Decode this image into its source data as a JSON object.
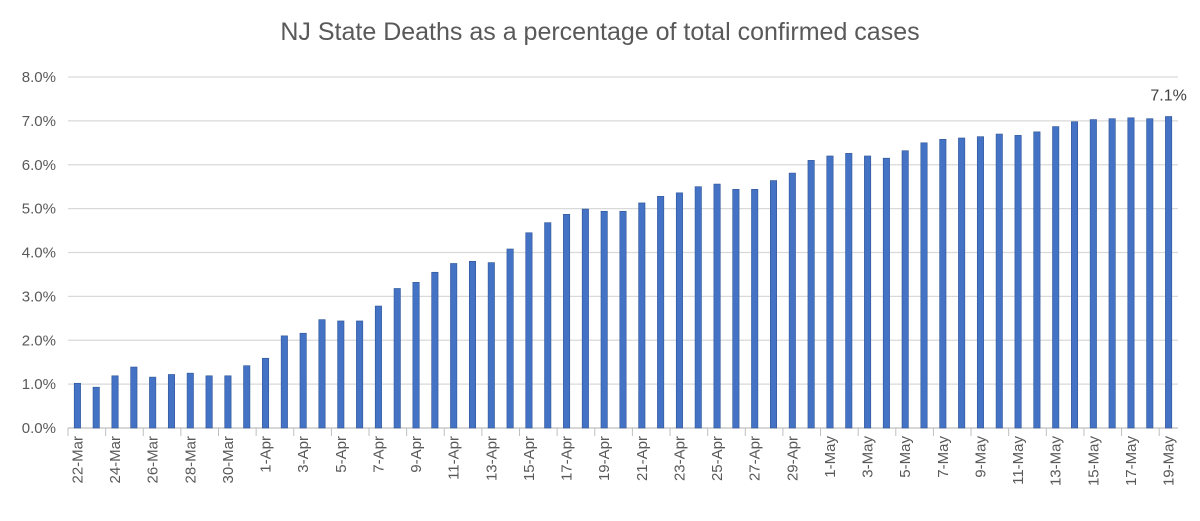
{
  "chart_data": {
    "type": "bar",
    "title": "NJ State Deaths as a percentage of total confirmed cases",
    "xlabel": "",
    "ylabel": "",
    "ylim": [
      0,
      8
    ],
    "yticks": [
      "0.0%",
      "1.0%",
      "2.0%",
      "3.0%",
      "4.0%",
      "5.0%",
      "6.0%",
      "7.0%",
      "8.0%"
    ],
    "grid": true,
    "bar_color": "#4472C4",
    "categories": [
      "22-Mar",
      "23-Mar",
      "24-Mar",
      "25-Mar",
      "26-Mar",
      "27-Mar",
      "28-Mar",
      "29-Mar",
      "30-Mar",
      "31-Mar",
      "1-Apr",
      "2-Apr",
      "3-Apr",
      "4-Apr",
      "5-Apr",
      "6-Apr",
      "7-Apr",
      "8-Apr",
      "9-Apr",
      "10-Apr",
      "11-Apr",
      "12-Apr",
      "13-Apr",
      "14-Apr",
      "15-Apr",
      "16-Apr",
      "17-Apr",
      "18-Apr",
      "19-Apr",
      "20-Apr",
      "21-Apr",
      "22-Apr",
      "23-Apr",
      "24-Apr",
      "25-Apr",
      "26-Apr",
      "27-Apr",
      "28-Apr",
      "29-Apr",
      "30-Apr",
      "1-May",
      "2-May",
      "3-May",
      "4-May",
      "5-May",
      "6-May",
      "7-May",
      "8-May",
      "9-May",
      "10-May",
      "11-May",
      "12-May",
      "13-May",
      "14-May",
      "15-May",
      "16-May",
      "17-May",
      "18-May",
      "19-May"
    ],
    "values": [
      1.02,
      0.93,
      1.19,
      1.39,
      1.16,
      1.22,
      1.25,
      1.19,
      1.19,
      1.42,
      1.59,
      2.1,
      2.16,
      2.47,
      2.44,
      2.44,
      2.78,
      3.18,
      3.32,
      3.55,
      3.75,
      3.8,
      3.77,
      4.08,
      4.45,
      4.68,
      4.87,
      4.99,
      4.94,
      4.94,
      5.13,
      5.28,
      5.36,
      5.5,
      5.56,
      5.44,
      5.44,
      5.64,
      5.81,
      6.1,
      6.2,
      6.26,
      6.2,
      6.15,
      6.32,
      6.5,
      6.58,
      6.61,
      6.64,
      6.7,
      6.67,
      6.75,
      6.87,
      6.98,
      7.03,
      7.05,
      7.07,
      7.05,
      7.1
    ],
    "label_every": 2,
    "data_labels": [
      {
        "category": "19-May",
        "text": "7.1%"
      }
    ]
  }
}
